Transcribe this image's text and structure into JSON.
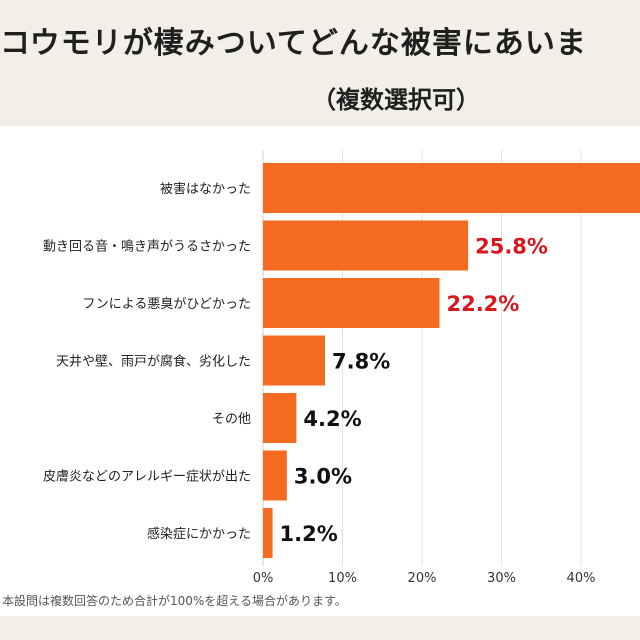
{
  "title": "コウモリが棲みついてどんな被害にあいま",
  "subtitle": "（複数選択可）",
  "note": "本設問は複数回答のため合計が100%を超える場合があります。",
  "colors": {
    "bar": "#f26b21",
    "highlight_label": "#d9161d",
    "label": "#111111",
    "grid": "#e2e2e2"
  },
  "chart_data": {
    "type": "bar",
    "orientation": "horizontal",
    "categories": [
      "被害はなかった",
      "動き回る音・鳴き声がうるさかった",
      "フンによる悪臭がひどかった",
      "天井や壁、雨戸が腐食、劣化した",
      "その他",
      "皮膚炎などのアレルギー症状が出た",
      "感染症にかかった"
    ],
    "values": [
      null,
      25.8,
      22.2,
      7.8,
      4.2,
      3.0,
      1.2
    ],
    "data_labels": [
      "",
      "25.8%",
      "22.2%",
      "7.8%",
      "4.2%",
      "3.0%",
      "1.2%"
    ],
    "highlighted": [
      false,
      true,
      true,
      false,
      false,
      false,
      false
    ],
    "xticks": [
      "0%",
      "10%",
      "20%",
      "30%",
      "40%"
    ],
    "xlim": [
      0,
      50
    ],
    "grid": true
  }
}
